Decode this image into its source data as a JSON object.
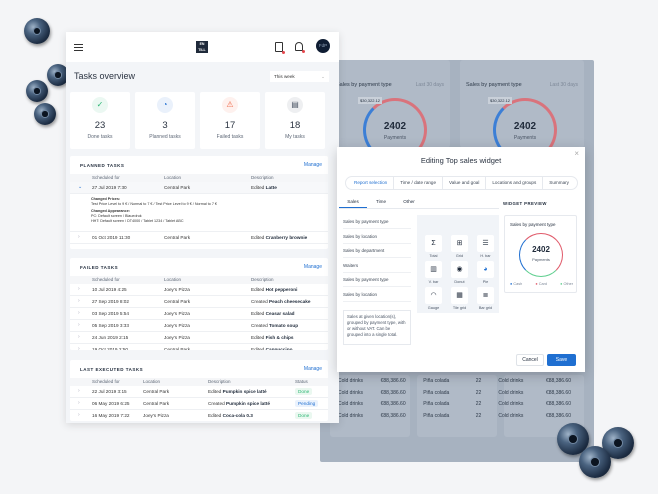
{
  "header": {
    "logo_text": "EN TILL",
    "avatar": "FdP",
    "icons": [
      "menu-icon",
      "checklist-icon",
      "bell-icon"
    ]
  },
  "overview": {
    "title": "Tasks overview",
    "period": "This week",
    "stats": [
      {
        "value": "23",
        "label": "Done tasks",
        "icon": "check-icon",
        "color": "#2bb673"
      },
      {
        "value": "3",
        "label": "Planned tasks",
        "icon": "clock-icon",
        "color": "#1f6fd1"
      },
      {
        "value": "17",
        "label": "Failed tasks",
        "icon": "warning-icon",
        "color": "#f06a4a"
      },
      {
        "value": "18",
        "label": "My tasks",
        "icon": "clipboard-icon",
        "color": "#4a5565"
      }
    ]
  },
  "planned": {
    "title": "PLANNED TASKS",
    "manage": "Manage",
    "columns": [
      "Scheduled for",
      "Location",
      "Description"
    ],
    "rows": [
      {
        "date": "27 Jul 2019  7:30",
        "location": "Central Park",
        "action": "Edited",
        "item": "Latte"
      },
      {
        "date": "01 Oct 2019  11:30",
        "location": "Central Park",
        "action": "Edited",
        "item": "Cranberry brownie"
      }
    ],
    "details": {
      "prices_title": "Changed Prices:",
      "prices": "Test Price Level to 9 €  /  Normal to 7 €  /  Test Price Level to 9 €  /  Normal to 7 €",
      "appearance_title": "Changed Appearance:",
      "appearance1": "PC: Default screen  /  Blauedruk",
      "appearance2": "HHT: Default screen  /  DT4000  /  Tablet 1234  /  Tablet ABC"
    }
  },
  "failed": {
    "title": "FAILED TASKS",
    "manage": "Manage",
    "columns": [
      "Scheduled for",
      "Location",
      "Description"
    ],
    "rows": [
      {
        "date": "10 Jul 2019  4:25",
        "location": "Joey's Pizza",
        "action": "Edited",
        "item": "Hot pepperoni"
      },
      {
        "date": "27 Sep 2019  8:02",
        "location": "Central Park",
        "action": "Created",
        "item": "Peach cheesecake"
      },
      {
        "date": "03 Sep 2019  5:54",
        "location": "Joey's Pizza",
        "action": "Edited",
        "item": "Ceasar salad"
      },
      {
        "date": "05 Sep 2019  3:33",
        "location": "Joey's Pizza",
        "action": "Created",
        "item": "Tomato soup"
      },
      {
        "date": "24 Jun 2019  2:15",
        "location": "Joey's Pizza",
        "action": "Edited",
        "item": "Fish & chips"
      },
      {
        "date": "19 Oct 2019  2:50",
        "location": "Central Park",
        "action": "Edited",
        "item": "Cappuccino"
      }
    ]
  },
  "executed": {
    "title": "LAST EXECUTED TASKS",
    "manage": "Manage",
    "columns": [
      "Scheduled for",
      "Location",
      "Description",
      "Status"
    ],
    "rows": [
      {
        "date": "22 Jul 2019  3:15",
        "location": "Central Park",
        "action": "Edited",
        "item": "Pumpkin spice latté",
        "status": "Done"
      },
      {
        "date": "06 May 2019  6:25",
        "location": "Central Park",
        "action": "Created",
        "item": "Pumpkin spice latté",
        "status": "Pending"
      },
      {
        "date": "16 May 2019  7:22",
        "location": "Joey's Pizza",
        "action": "Edited",
        "item": "Coca-cola 0.3",
        "status": "Done"
      }
    ]
  },
  "backdrop": {
    "cards": [
      {
        "title": "Sales by payment type",
        "period": "Last 30 days",
        "value": "2402",
        "sub": "Payments",
        "tooltip": "$30,322.12"
      },
      {
        "title": "Sales by payment type",
        "period": "Last 30 days",
        "value": "2402",
        "sub": "Payments",
        "tooltip": "$30,322.12"
      }
    ],
    "table_rows": [
      {
        "a": "Cold drinks",
        "b": "€88,386.60",
        "c": "Piña colada",
        "d": "22",
        "e": "Cold drinks",
        "f": "€88,386.60"
      },
      {
        "a": "Cold drinks",
        "b": "€88,386.60",
        "c": "Piña colada",
        "d": "22",
        "e": "Cold drinks",
        "f": "€88,386.60"
      },
      {
        "a": "Cold drinks",
        "b": "€88,386.60",
        "c": "Piña colada",
        "d": "22",
        "e": "Cold drinks",
        "f": "€88,386.60"
      },
      {
        "a": "Cold drinks",
        "b": "€88,386.60",
        "c": "Piña colada",
        "d": "22",
        "e": "Cold drinks",
        "f": "€88,386.60"
      }
    ]
  },
  "modal": {
    "title_prefix": "Editing ",
    "title_bold": "Top sales widget",
    "steps": [
      "Report selection",
      "Time / date range",
      "Value and goal",
      "Locations and groups",
      "Summary"
    ],
    "active_step": 0,
    "subtabs": [
      "Sales",
      "Time",
      "Other"
    ],
    "active_subtab": 0,
    "reports": [
      "Sales by payment type",
      "Sales by location",
      "Sales by department",
      "Waiters",
      "Sales by payment type",
      "Sales by location"
    ],
    "description": "Sales at given location(s), grouped by payment type, with or without VAT. Can be grouped into a single total.",
    "widget_types": [
      {
        "label": "Total",
        "icon": "Σ"
      },
      {
        "label": "Grid",
        "icon": "⊞"
      },
      {
        "label": "H. bar",
        "icon": "☰"
      },
      {
        "label": "V. bar",
        "icon": "▥"
      },
      {
        "label": "Donut",
        "icon": "◉"
      },
      {
        "label": "Pie",
        "icon": "◕"
      },
      {
        "label": "Gauge",
        "icon": "◠"
      },
      {
        "label": "Tile grid",
        "icon": "▦"
      },
      {
        "label": "Bar grid",
        "icon": "≣"
      }
    ],
    "preview": {
      "heading": "WIDGET PREVIEW",
      "title": "Sales by payment type",
      "value": "2402",
      "sub": "Payments",
      "legend": [
        {
          "label": "Cash",
          "color": "#1f6fd1"
        },
        {
          "label": "Card",
          "color": "#e05a6a"
        },
        {
          "label": "Other",
          "color": "#5fcf8f"
        }
      ]
    },
    "cancel": "Cancel",
    "save": "Save",
    "close": "×"
  }
}
